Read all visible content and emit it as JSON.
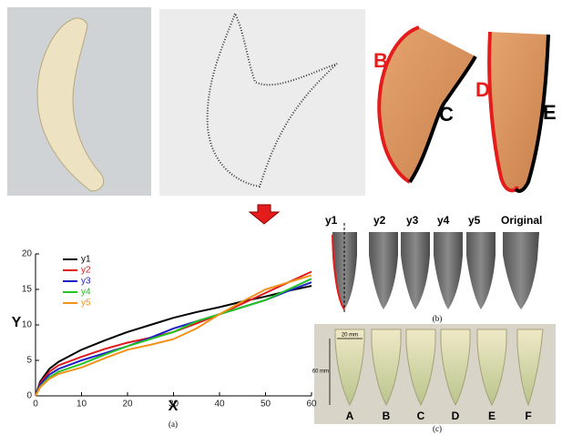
{
  "chart_data": {
    "type": "line",
    "xlabel": "X",
    "ylabel": "Y",
    "caption": "(a)",
    "x": [
      0,
      1,
      3,
      5,
      10,
      15,
      20,
      25,
      30,
      35,
      40,
      45,
      50,
      55,
      60
    ],
    "series": [
      {
        "name": "y1",
        "color": "#000000",
        "values": [
          0,
          2,
          3.8,
          4.8,
          6.5,
          7.8,
          9,
          10,
          11,
          11.8,
          12.5,
          13.3,
          14,
          14.8,
          15.5
        ]
      },
      {
        "name": "y2",
        "color": "#e0191c",
        "values": [
          0,
          1.8,
          3.4,
          4.3,
          5.5,
          6.6,
          7.5,
          8.2,
          9,
          10.2,
          11.5,
          13,
          14.5,
          16,
          17.5
        ]
      },
      {
        "name": "y3",
        "color": "#1f1fc8",
        "values": [
          0,
          1.6,
          3,
          3.8,
          5,
          6,
          7,
          8.2,
          9.5,
          10.5,
          11.5,
          12.5,
          13.5,
          14.8,
          16
        ]
      },
      {
        "name": "y4",
        "color": "#22c322",
        "values": [
          0,
          1.3,
          2.6,
          3.4,
          4.5,
          5.8,
          7,
          8,
          9,
          10.5,
          11.5,
          12.5,
          13.5,
          15,
          16.5
        ]
      },
      {
        "name": "y5",
        "color": "#f39019",
        "values": [
          0,
          1.2,
          2.4,
          3.1,
          4,
          5.3,
          6.5,
          7.2,
          8,
          9.5,
          11.5,
          13.3,
          15,
          16,
          17
        ]
      }
    ],
    "xlim": [
      0,
      60
    ],
    "xticks": [
      0,
      10,
      20,
      30,
      40,
      50,
      60
    ],
    "ylim": [
      0,
      20
    ],
    "yticks": [
      0,
      5,
      10,
      15,
      20
    ],
    "legend": "upper left"
  },
  "photos": {
    "part_labels": [
      "B",
      "C",
      "D",
      "E"
    ]
  },
  "models": {
    "labels": [
      "y1",
      "y2",
      "y3",
      "y4",
      "y5",
      "Original"
    ],
    "caption": "(b)"
  },
  "samples": {
    "labels": [
      "A",
      "B",
      "C",
      "D",
      "E",
      "F"
    ],
    "width_label": "20 mm",
    "height_label": "60 mm",
    "caption": "(c)"
  }
}
